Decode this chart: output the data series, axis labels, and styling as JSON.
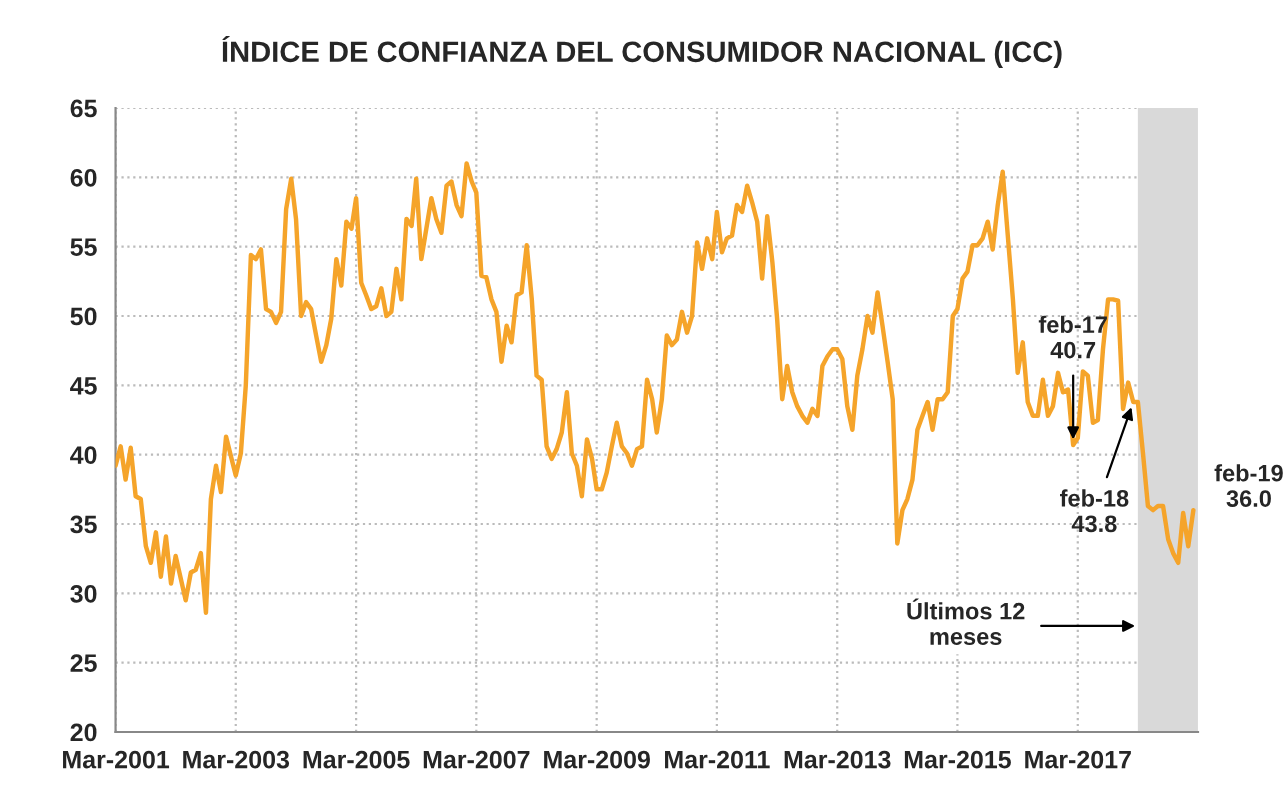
{
  "chart_data": {
    "type": "line",
    "title": "ÍNDICE DE CONFIANZA DEL CONSUMIDOR NACIONAL (ICC)",
    "xlim": [
      "2001-03",
      "2019-03"
    ],
    "xticks": [
      {
        "value": "2001-03",
        "label": "Mar-2001"
      },
      {
        "value": "2003-03",
        "label": "Mar-2003"
      },
      {
        "value": "2005-03",
        "label": "Mar-2005"
      },
      {
        "value": "2007-03",
        "label": "Mar-2007"
      },
      {
        "value": "2009-03",
        "label": "Mar-2009"
      },
      {
        "value": "2011-03",
        "label": "Mar-2011"
      },
      {
        "value": "2013-03",
        "label": "Mar-2013"
      },
      {
        "value": "2015-03",
        "label": "Mar-2015"
      },
      {
        "value": "2017-03",
        "label": "Mar-2017"
      }
    ],
    "ylim": [
      20,
      65
    ],
    "yticks": [
      20,
      25,
      30,
      35,
      40,
      45,
      50,
      55,
      60,
      65
    ],
    "grid": true,
    "legend": false,
    "marker": "none",
    "line_style": "solid",
    "series": [
      {
        "color": "#f5a42a",
        "x": [
          "2001-03",
          "2001-04",
          "2001-05",
          "2001-06",
          "2001-07",
          "2001-08",
          "2001-09",
          "2001-10",
          "2001-11",
          "2001-12",
          "2002-01",
          "2002-02",
          "2002-03",
          "2002-05",
          "2002-06",
          "2002-07",
          "2002-08",
          "2002-09",
          "2002-10",
          "2002-11",
          "2002-12",
          "2003-01",
          "2003-03",
          "2003-04",
          "2003-05",
          "2003-06",
          "2003-07",
          "2003-08",
          "2003-09",
          "2003-10",
          "2003-11",
          "2003-12",
          "2004-01",
          "2004-02",
          "2004-03",
          "2004-04",
          "2004-05",
          "2004-06",
          "2004-07",
          "2004-08",
          "2004-09",
          "2004-10",
          "2004-11",
          "2004-12",
          "2005-01",
          "2005-02",
          "2005-03",
          "2005-04",
          "2005-05",
          "2005-06",
          "2005-07",
          "2005-08",
          "2005-09",
          "2005-10",
          "2005-11",
          "2005-12",
          "2006-01",
          "2006-02",
          "2006-03",
          "2006-04",
          "2006-06",
          "2006-07",
          "2006-08",
          "2006-09",
          "2006-10",
          "2006-11",
          "2006-12",
          "2007-01",
          "2007-02",
          "2007-03",
          "2007-04",
          "2007-05",
          "2007-06",
          "2007-07",
          "2007-08",
          "2007-09",
          "2007-10",
          "2007-11",
          "2007-12",
          "2008-01",
          "2008-02",
          "2008-03",
          "2008-04",
          "2008-05",
          "2008-06",
          "2008-07",
          "2008-08",
          "2008-09",
          "2008-10",
          "2008-11",
          "2008-12",
          "2009-01",
          "2009-02",
          "2009-03",
          "2009-04",
          "2009-05",
          "2009-06",
          "2009-07",
          "2009-08",
          "2009-09",
          "2009-10",
          "2009-11",
          "2009-12",
          "2010-01",
          "2010-02",
          "2010-03",
          "2010-04",
          "2010-05",
          "2010-06",
          "2010-07",
          "2010-08",
          "2010-09",
          "2010-10",
          "2010-11",
          "2010-12",
          "2011-01",
          "2011-02",
          "2011-03",
          "2011-04",
          "2011-05",
          "2011-06",
          "2011-07",
          "2011-08",
          "2011-09",
          "2011-10",
          "2011-11",
          "2011-12",
          "2012-01",
          "2012-02",
          "2012-03",
          "2012-04",
          "2012-05",
          "2012-06",
          "2012-07",
          "2012-08",
          "2012-09",
          "2012-10",
          "2012-11",
          "2012-12",
          "2013-01",
          "2013-02",
          "2013-03",
          "2013-04",
          "2013-05",
          "2013-06",
          "2013-07",
          "2013-08",
          "2013-09",
          "2013-10",
          "2013-11",
          "2013-12",
          "2014-01",
          "2014-02",
          "2014-03",
          "2014-04",
          "2014-05",
          "2014-06",
          "2014-07",
          "2014-08",
          "2014-09",
          "2014-10",
          "2014-11",
          "2014-12",
          "2015-01",
          "2015-02",
          "2015-03",
          "2015-04",
          "2015-05",
          "2015-06",
          "2015-07",
          "2015-08",
          "2015-09",
          "2015-10",
          "2015-11",
          "2015-12",
          "2016-01",
          "2016-02",
          "2016-03",
          "2016-04",
          "2016-05",
          "2016-06",
          "2016-07",
          "2016-08",
          "2016-09",
          "2016-10",
          "2016-11",
          "2016-12",
          "2017-01",
          "2017-02",
          "2017-03",
          "2017-04",
          "2017-05",
          "2017-06",
          "2017-07",
          "2017-08",
          "2017-09",
          "2017-10",
          "2017-11",
          "2017-12",
          "2018-01",
          "2018-02",
          "2018-03",
          "2018-04",
          "2018-05",
          "2018-06",
          "2018-07",
          "2018-08",
          "2018-09",
          "2018-10",
          "2018-11",
          "2018-12",
          "2019-01",
          "2019-02"
        ],
        "values": [
          39.2,
          40.6,
          38.2,
          40.5,
          37.0,
          36.8,
          33.4,
          32.2,
          34.4,
          31.2,
          34.1,
          30.7,
          32.7,
          29.5,
          31.5,
          31.7,
          32.9,
          28.6,
          36.8,
          39.2,
          37.3,
          41.3,
          38.5,
          40.1,
          45.0,
          54.4,
          54.1,
          54.8,
          50.5,
          50.3,
          49.5,
          50.3,
          57.7,
          59.9,
          57.0,
          50.0,
          51.0,
          50.5,
          48.6,
          46.7,
          47.9,
          49.8,
          54.1,
          52.2,
          56.8,
          56.3,
          58.5,
          52.4,
          51.5,
          50.5,
          50.7,
          52.0,
          50.0,
          50.3,
          53.4,
          51.2,
          57.0,
          56.5,
          59.9,
          54.1,
          58.5,
          57.0,
          56.0,
          59.4,
          59.7,
          58.0,
          57.2,
          61.0,
          59.7,
          58.9,
          52.9,
          52.8,
          51.2,
          50.3,
          46.7,
          49.3,
          48.1,
          51.5,
          51.7,
          55.1,
          51.2,
          45.7,
          45.4,
          40.6,
          39.7,
          40.4,
          41.6,
          44.5,
          40.1,
          39.2,
          37.0,
          41.1,
          39.7,
          37.5,
          37.5,
          38.7,
          40.6,
          42.3,
          40.6,
          40.1,
          39.2,
          40.4,
          40.6,
          45.4,
          44.0,
          41.6,
          44.0,
          48.6,
          47.9,
          48.3,
          50.3,
          48.8,
          50.0,
          55.3,
          53.4,
          55.6,
          54.1,
          57.5,
          54.6,
          55.6,
          55.8,
          58.0,
          57.5,
          59.4,
          58.2,
          56.8,
          52.7,
          57.2,
          53.9,
          49.8,
          44.0,
          46.4,
          44.5,
          43.5,
          42.8,
          42.3,
          43.3,
          42.8,
          46.4,
          47.1,
          47.6,
          47.6,
          46.9,
          43.5,
          41.8,
          45.7,
          47.6,
          50.0,
          48.8,
          51.7,
          49.3,
          46.7,
          44.0,
          33.6,
          36.0,
          36.8,
          38.2,
          41.8,
          42.8,
          43.8,
          41.8,
          44.0,
          44.0,
          44.5,
          50.0,
          50.5,
          52.7,
          53.2,
          55.1,
          55.1,
          55.6,
          56.8,
          54.8,
          58.0,
          60.4,
          55.8,
          51.2,
          45.9,
          48.1,
          43.8,
          42.8,
          42.8,
          45.4,
          42.8,
          43.5,
          45.9,
          44.5,
          44.7,
          40.7,
          41.2,
          46.0,
          45.7,
          42.3,
          42.5,
          47.6,
          51.2,
          51.2,
          51.1,
          43.3,
          45.2,
          43.8,
          43.8,
          40.1,
          36.3,
          36.0,
          36.3,
          36.3,
          33.9,
          32.9,
          32.2,
          35.8,
          33.4,
          36.0
        ]
      }
    ],
    "bands": [
      {
        "axis": "x",
        "from": "2018-03",
        "to": "2019-03",
        "label": "Últimos 12 meses",
        "color": "#d9d9d9"
      }
    ],
    "annotations": [
      {
        "text": "feb-17\n40.7",
        "x": "2017-02",
        "y": 40.7
      },
      {
        "text": "feb-18\n43.8",
        "x": "2018-02",
        "y": 43.8
      },
      {
        "text": "feb-19\n36.0",
        "x": "2019-02",
        "y": 36.0
      }
    ]
  }
}
